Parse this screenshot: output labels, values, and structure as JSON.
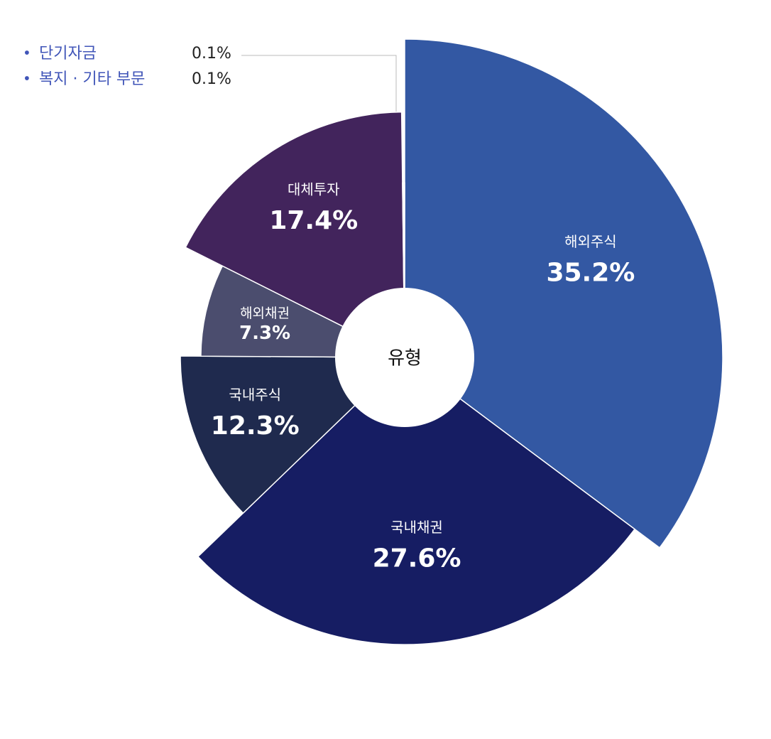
{
  "chart_data": {
    "type": "pie",
    "center_label": "유형",
    "categories": [
      "해외주식",
      "국내채권",
      "국내주식",
      "해외채권",
      "대체투자",
      "단기자금",
      "복지 · 기타 부문"
    ],
    "values": [
      35.2,
      27.6,
      12.3,
      7.3,
      17.4,
      0.1,
      0.1
    ],
    "value_labels": [
      "35.2%",
      "27.6%",
      "12.3%",
      "7.3%",
      "17.4%",
      "0.1%",
      "0.1%"
    ],
    "colors": [
      "#3358a3",
      "#161d63",
      "#1f2a4e",
      "#4b4d6e",
      "#42245c",
      "#1a1a12",
      "#2c2c20"
    ]
  }
}
